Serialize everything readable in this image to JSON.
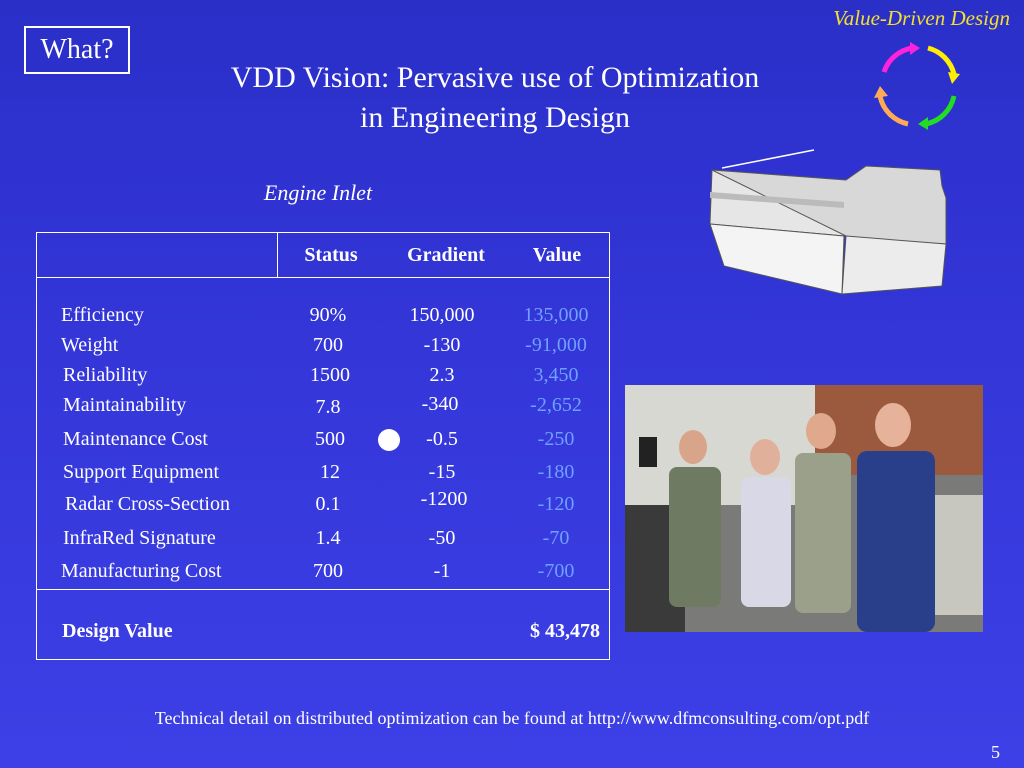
{
  "slide": {
    "label": "What?",
    "corner_title": "Value-Driven Design",
    "title_line1": "VDD Vision:  Pervasive use of Optimization",
    "title_line2": "in Engineering Design",
    "subtitle": "Engine Inlet",
    "footnote": "Technical detail on distributed optimization can be found at http://www.dfmconsulting.com/opt.pdf",
    "page_number": "5"
  },
  "table": {
    "headers": [
      "Status",
      "Gradient",
      "Value"
    ],
    "rows": [
      {
        "attribute": "Efficiency",
        "status": "90%",
        "gradient": "150,000",
        "value": "135,000"
      },
      {
        "attribute": "Weight",
        "status": "700",
        "gradient": "-130",
        "value": "-91,000"
      },
      {
        "attribute": "Reliability",
        "status": "1500",
        "gradient": "2.3",
        "value": "3,450"
      },
      {
        "attribute": "Maintainability",
        "status": "7.8",
        "gradient": "-340",
        "value": "-2,652"
      },
      {
        "attribute": "Maintenance Cost",
        "status": "500",
        "gradient": "-0.5",
        "value": "-250"
      },
      {
        "attribute": "Support Equipment",
        "status": "12",
        "gradient": "-15",
        "value": "-180"
      },
      {
        "attribute": "Radar Cross-Section",
        "status": "0.1",
        "gradient": "-1200",
        "value": "-120"
      },
      {
        "attribute": "InfraRed Signature",
        "status": "1.4",
        "gradient": "-50",
        "value": "-70"
      },
      {
        "attribute": "Manufacturing Cost",
        "status": "700",
        "gradient": "-1",
        "value": "-700"
      }
    ],
    "total_label": "Design Value",
    "total_value": "$ 43,478"
  },
  "colors": {
    "background": "#3436d8",
    "corner_title": "#f4e12a",
    "value_column": "#6fa0ff",
    "cycle_arrows": [
      "#ff22dd",
      "#ffee00",
      "#22dd22",
      "#ffaa55"
    ]
  },
  "icons": {
    "cycle": "value-cycle-arrows-icon",
    "marker": "circle-marker-icon"
  },
  "images": {
    "inlet": "engine-inlet-diagram",
    "photo": "team-photo"
  }
}
